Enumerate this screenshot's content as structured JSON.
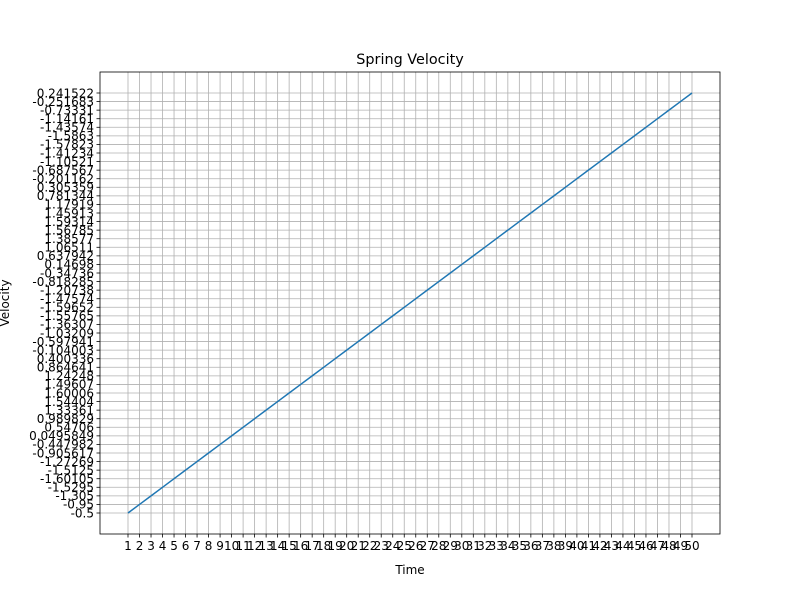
{
  "chart_data": {
    "type": "line",
    "title": "Spring Velocity",
    "xlabel": "Time",
    "ylabel": "Velocity",
    "grid": true,
    "line_color": "#1f77b4",
    "categories": [
      "1",
      "2",
      "3",
      "4",
      "5",
      "6",
      "7",
      "8",
      "9",
      "10",
      "11",
      "12",
      "13",
      "14",
      "15",
      "16",
      "17",
      "18",
      "19",
      "20",
      "21",
      "22",
      "23",
      "24",
      "25",
      "26",
      "27",
      "28",
      "29",
      "30",
      "31",
      "32",
      "33",
      "34",
      "35",
      "36",
      "37",
      "38",
      "39",
      "40",
      "41",
      "42",
      "43",
      "44",
      "45",
      "46",
      "47",
      "48",
      "49",
      "50"
    ],
    "values": [
      "-0.5",
      "-0.95",
      "-1.305",
      "-1.5295",
      "-1.60105",
      "-1.5125",
      "-1.27269",
      "-0.905617",
      "-0.447982",
      "0.0495849",
      "0.54706",
      "0.989829",
      "1.33361",
      "1.54404",
      "1.60006",
      "1.49607",
      "1.24248",
      "0.864641",
      "0.400336",
      "-0.104003",
      "-0.597941",
      "-1.03209",
      "-1.36307",
      "-1.55765",
      "-1.59652",
      "-1.47574",
      "-1.20738",
      "-0.818285",
      "-0.34736",
      "0.14698",
      "0.637942",
      "1.06511",
      "1.38577",
      "1.56785",
      "1.59314",
      "1.45913",
      "1.17919",
      "0.781344",
      "0.305359",
      "-0.201162",
      "-0.687567",
      "-1.10521",
      "-1.41234",
      "-1.57823",
      "-1.5863",
      "-1.43574",
      "-1.14161",
      "-0.73331",
      "-0.251683",
      "0.241522"
    ]
  }
}
